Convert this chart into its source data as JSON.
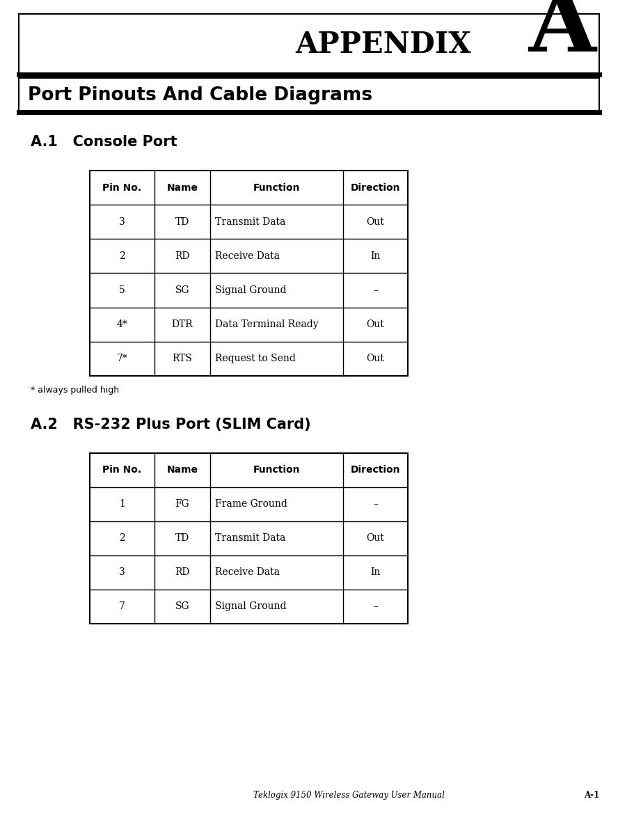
{
  "page_width": 8.88,
  "page_height": 11.68,
  "bg_color": "#ffffff",
  "appendix_label": "APPENDIX",
  "appendix_letter": "A",
  "chapter_title": "Port Pinouts And Cable Diagrams",
  "section1_title": "A.1   Console Port",
  "section2_title": "A.2   RS-232 Plus Port (SLIM Card)",
  "footnote": "* always pulled high",
  "footer_text": "Teklogix 9150 Wireless Gateway User Manual",
  "footer_page": "A-1",
  "table1_headers": [
    "Pin No.",
    "Name",
    "Function",
    "Direction"
  ],
  "table1_rows": [
    [
      "3",
      "TD",
      "Transmit Data",
      "Out"
    ],
    [
      "2",
      "RD",
      "Receive Data",
      "In"
    ],
    [
      "5",
      "SG",
      "Signal Ground",
      "–"
    ],
    [
      "4*",
      "DTR",
      "Data Terminal Ready",
      "Out"
    ],
    [
      "7*",
      "RTS",
      "Request to Send",
      "Out"
    ]
  ],
  "table2_headers": [
    "Pin No.",
    "Name",
    "Function",
    "Direction"
  ],
  "table2_rows": [
    [
      "1",
      "FG",
      "Frame Ground",
      "–"
    ],
    [
      "2",
      "TD",
      "Transmit Data",
      "Out"
    ],
    [
      "3",
      "RD",
      "Receive Data",
      "In"
    ],
    [
      "7",
      "SG",
      "Signal Ground",
      "–"
    ]
  ]
}
